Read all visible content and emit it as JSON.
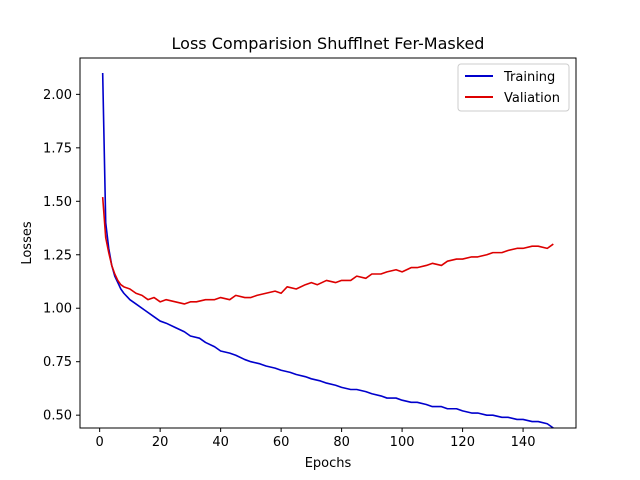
{
  "chart_data": {
    "type": "line",
    "title": "Loss Comparision Shufflnet Fer-Masked",
    "xlabel": "Epochs",
    "ylabel": "Losses",
    "xlim": [
      -6.5,
      157.5
    ],
    "ylim": [
      0.44,
      2.17
    ],
    "xticks": [
      0,
      20,
      40,
      60,
      80,
      100,
      120,
      140
    ],
    "yticks": [
      0.5,
      0.75,
      1.0,
      1.25,
      1.5,
      1.75,
      2.0
    ],
    "ytick_labels": [
      "0.50",
      "0.75",
      "1.00",
      "1.25",
      "1.50",
      "1.75",
      "2.00"
    ],
    "grid": false,
    "legend_position": "top-right",
    "series": [
      {
        "name": "Training",
        "color": "#0000cc",
        "points": [
          [
            1,
            2.1
          ],
          [
            2,
            1.4
          ],
          [
            3,
            1.28
          ],
          [
            4,
            1.2
          ],
          [
            5,
            1.15
          ],
          [
            6,
            1.12
          ],
          [
            7,
            1.09
          ],
          [
            8,
            1.07
          ],
          [
            10,
            1.04
          ],
          [
            12,
            1.02
          ],
          [
            15,
            0.99
          ],
          [
            18,
            0.96
          ],
          [
            20,
            0.94
          ],
          [
            22,
            0.93
          ],
          [
            25,
            0.91
          ],
          [
            28,
            0.89
          ],
          [
            30,
            0.87
          ],
          [
            33,
            0.86
          ],
          [
            35,
            0.84
          ],
          [
            38,
            0.82
          ],
          [
            40,
            0.8
          ],
          [
            43,
            0.79
          ],
          [
            45,
            0.78
          ],
          [
            48,
            0.76
          ],
          [
            50,
            0.75
          ],
          [
            53,
            0.74
          ],
          [
            55,
            0.73
          ],
          [
            58,
            0.72
          ],
          [
            60,
            0.71
          ],
          [
            63,
            0.7
          ],
          [
            65,
            0.69
          ],
          [
            68,
            0.68
          ],
          [
            70,
            0.67
          ],
          [
            73,
            0.66
          ],
          [
            75,
            0.65
          ],
          [
            78,
            0.64
          ],
          [
            80,
            0.63
          ],
          [
            83,
            0.62
          ],
          [
            85,
            0.62
          ],
          [
            88,
            0.61
          ],
          [
            90,
            0.6
          ],
          [
            93,
            0.59
          ],
          [
            95,
            0.58
          ],
          [
            98,
            0.58
          ],
          [
            100,
            0.57
          ],
          [
            103,
            0.56
          ],
          [
            105,
            0.56
          ],
          [
            108,
            0.55
          ],
          [
            110,
            0.54
          ],
          [
            113,
            0.54
          ],
          [
            115,
            0.53
          ],
          [
            118,
            0.53
          ],
          [
            120,
            0.52
          ],
          [
            123,
            0.51
          ],
          [
            125,
            0.51
          ],
          [
            128,
            0.5
          ],
          [
            130,
            0.5
          ],
          [
            133,
            0.49
          ],
          [
            135,
            0.49
          ],
          [
            138,
            0.48
          ],
          [
            140,
            0.48
          ],
          [
            143,
            0.47
          ],
          [
            145,
            0.47
          ],
          [
            148,
            0.46
          ],
          [
            150,
            0.44
          ]
        ]
      },
      {
        "name": "Valiation",
        "color": "#dd0000",
        "points": [
          [
            1,
            1.52
          ],
          [
            2,
            1.33
          ],
          [
            3,
            1.26
          ],
          [
            4,
            1.2
          ],
          [
            5,
            1.16
          ],
          [
            6,
            1.13
          ],
          [
            7,
            1.11
          ],
          [
            8,
            1.1
          ],
          [
            10,
            1.09
          ],
          [
            12,
            1.07
          ],
          [
            14,
            1.06
          ],
          [
            16,
            1.04
          ],
          [
            18,
            1.05
          ],
          [
            20,
            1.03
          ],
          [
            22,
            1.04
          ],
          [
            25,
            1.03
          ],
          [
            28,
            1.02
          ],
          [
            30,
            1.03
          ],
          [
            32,
            1.03
          ],
          [
            35,
            1.04
          ],
          [
            38,
            1.04
          ],
          [
            40,
            1.05
          ],
          [
            43,
            1.04
          ],
          [
            45,
            1.06
          ],
          [
            48,
            1.05
          ],
          [
            50,
            1.05
          ],
          [
            52,
            1.06
          ],
          [
            55,
            1.07
          ],
          [
            58,
            1.08
          ],
          [
            60,
            1.07
          ],
          [
            62,
            1.1
          ],
          [
            65,
            1.09
          ],
          [
            68,
            1.11
          ],
          [
            70,
            1.12
          ],
          [
            72,
            1.11
          ],
          [
            75,
            1.13
          ],
          [
            78,
            1.12
          ],
          [
            80,
            1.13
          ],
          [
            83,
            1.13
          ],
          [
            85,
            1.15
          ],
          [
            88,
            1.14
          ],
          [
            90,
            1.16
          ],
          [
            93,
            1.16
          ],
          [
            95,
            1.17
          ],
          [
            98,
            1.18
          ],
          [
            100,
            1.17
          ],
          [
            103,
            1.19
          ],
          [
            105,
            1.19
          ],
          [
            108,
            1.2
          ],
          [
            110,
            1.21
          ],
          [
            113,
            1.2
          ],
          [
            115,
            1.22
          ],
          [
            118,
            1.23
          ],
          [
            120,
            1.23
          ],
          [
            123,
            1.24
          ],
          [
            125,
            1.24
          ],
          [
            128,
            1.25
          ],
          [
            130,
            1.26
          ],
          [
            133,
            1.26
          ],
          [
            135,
            1.27
          ],
          [
            138,
            1.28
          ],
          [
            140,
            1.28
          ],
          [
            143,
            1.29
          ],
          [
            145,
            1.29
          ],
          [
            148,
            1.28
          ],
          [
            150,
            1.3
          ]
        ]
      }
    ]
  }
}
